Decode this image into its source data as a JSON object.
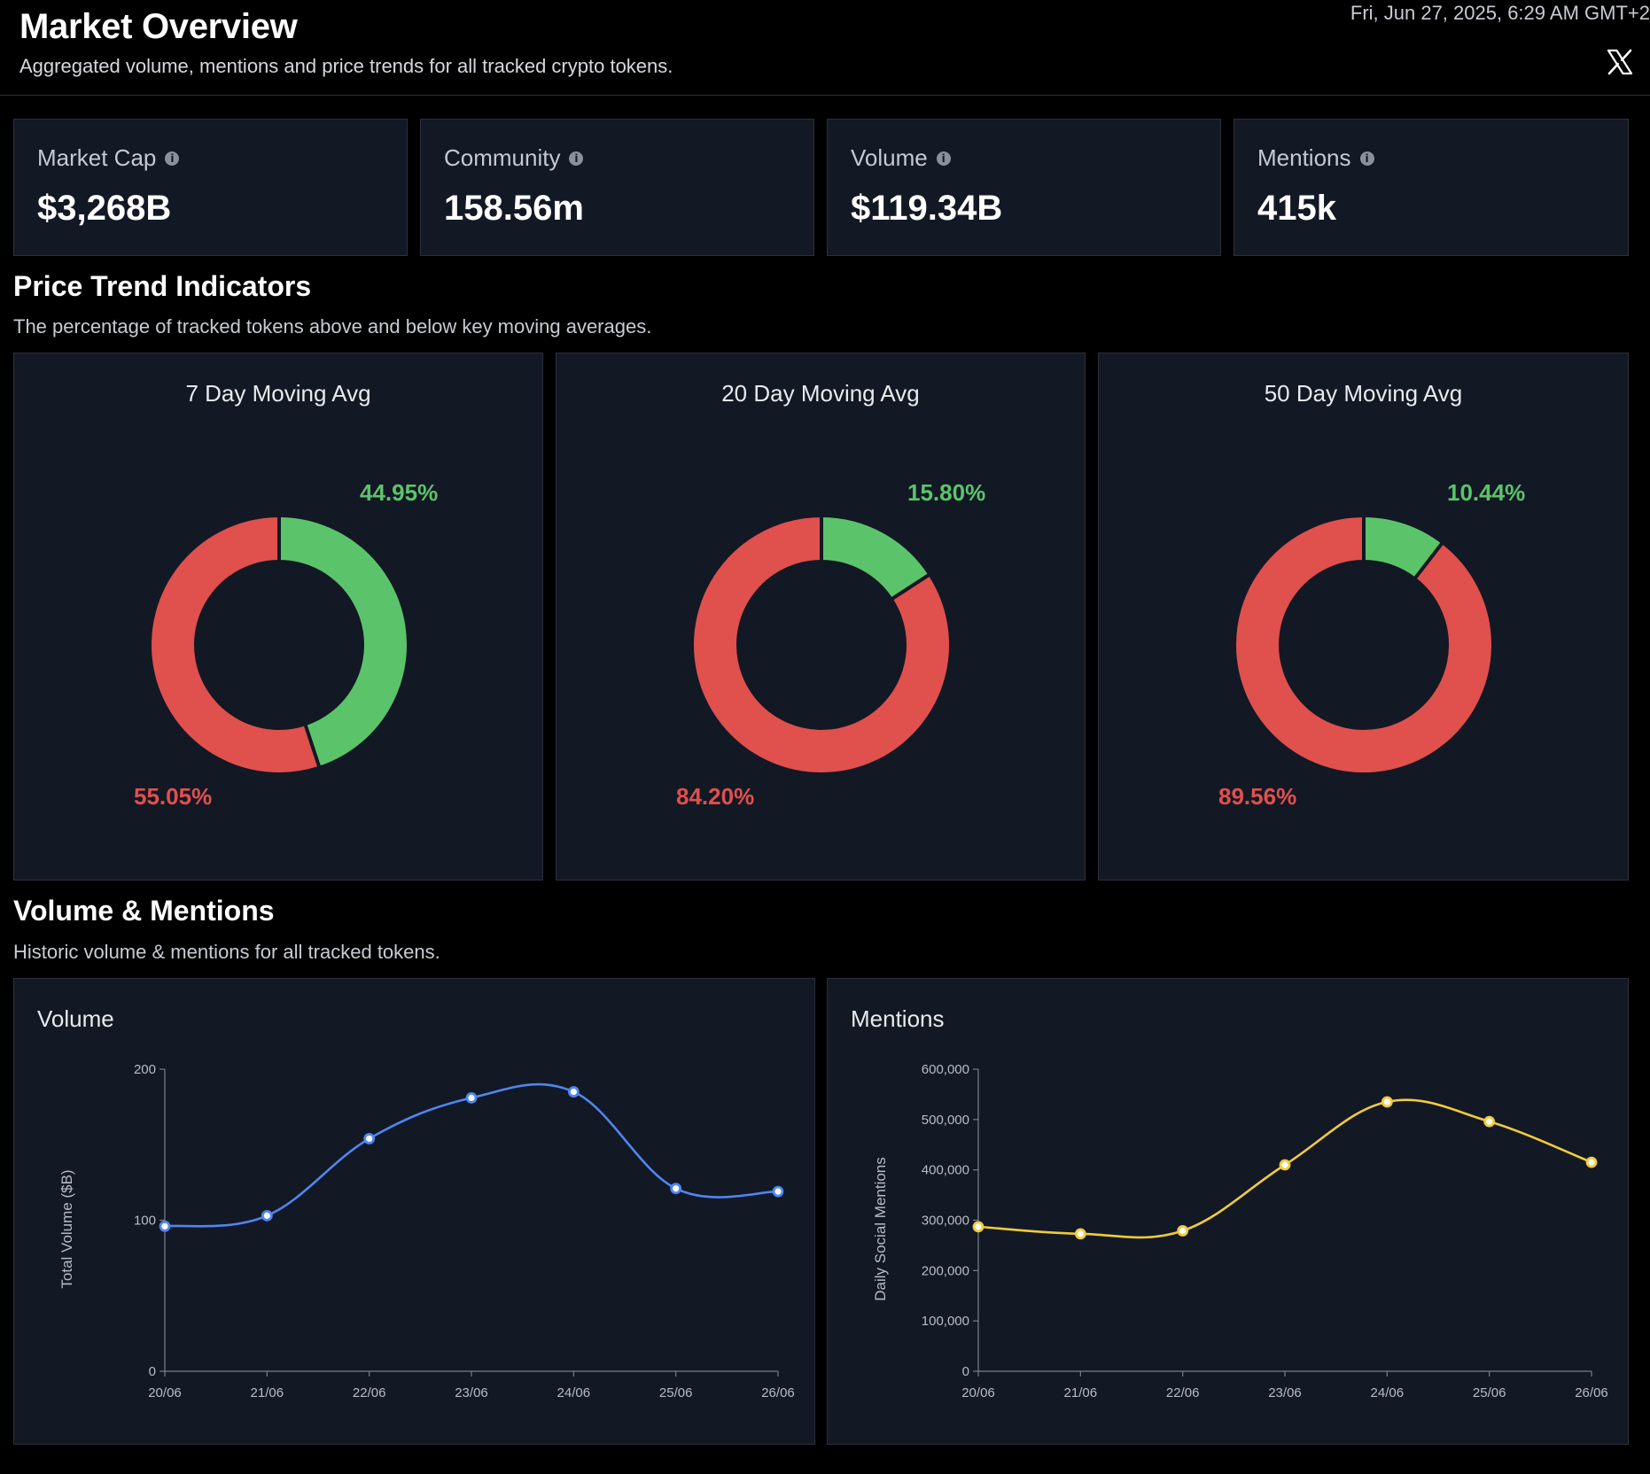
{
  "header": {
    "title": "Market Overview",
    "subtitle": "Aggregated volume, mentions and price trends for all tracked crypto tokens.",
    "timestamp": "Fri, Jun 27, 2025, 6:29 AM GMT+2",
    "icon": "x-logo-icon"
  },
  "stats": [
    {
      "label": "Market Cap",
      "value": "$3,268B"
    },
    {
      "label": "Community",
      "value": "158.56m"
    },
    {
      "label": "Volume",
      "value": "$119.34B"
    },
    {
      "label": "Mentions",
      "value": "415k"
    }
  ],
  "price_trend": {
    "title": "Price Trend Indicators",
    "subtitle": "The percentage of tracked tokens above and below key moving averages.",
    "colors": {
      "above": "#5bc46a",
      "below": "#e0504d"
    },
    "donuts": [
      {
        "title": "7 Day Moving Avg",
        "above": 44.95,
        "below": 55.05,
        "above_label": "44.95%",
        "below_label": "55.05%"
      },
      {
        "title": "20 Day Moving Avg",
        "above": 15.8,
        "below": 84.2,
        "above_label": "15.80%",
        "below_label": "84.20%"
      },
      {
        "title": "50 Day Moving Avg",
        "above": 10.44,
        "below": 89.56,
        "above_label": "10.44%",
        "below_label": "89.56%"
      }
    ]
  },
  "volume_mentions": {
    "title": "Volume & Mentions",
    "subtitle": "Historic volume & mentions for all tracked tokens."
  },
  "chart_data": [
    {
      "type": "line",
      "title": "Volume",
      "x": [
        "20/06",
        "21/06",
        "22/06",
        "23/06",
        "24/06",
        "25/06",
        "26/06"
      ],
      "values": [
        96,
        103,
        154,
        181,
        185,
        121,
        119
      ],
      "ylabel": "Total Volume ($B)",
      "yticks": [
        0,
        100,
        200
      ],
      "ytick_labels": [
        "0",
        "100",
        "200"
      ],
      "ylim": [
        0,
        200
      ],
      "color": "#4f86f0"
    },
    {
      "type": "line",
      "title": "Mentions",
      "x": [
        "20/06",
        "21/06",
        "22/06",
        "23/06",
        "24/06",
        "25/06",
        "26/06"
      ],
      "values": [
        287000,
        273000,
        279000,
        410000,
        535000,
        496000,
        415000
      ],
      "ylabel": "Daily Social Mentions",
      "yticks": [
        0,
        100000,
        200000,
        300000,
        400000,
        500000,
        600000
      ],
      "ytick_labels": [
        "0",
        "100,000",
        "200,000",
        "300,000",
        "400,000",
        "500,000",
        "600,000"
      ],
      "ylim": [
        0,
        600000
      ],
      "color": "#f0cc3c"
    }
  ]
}
